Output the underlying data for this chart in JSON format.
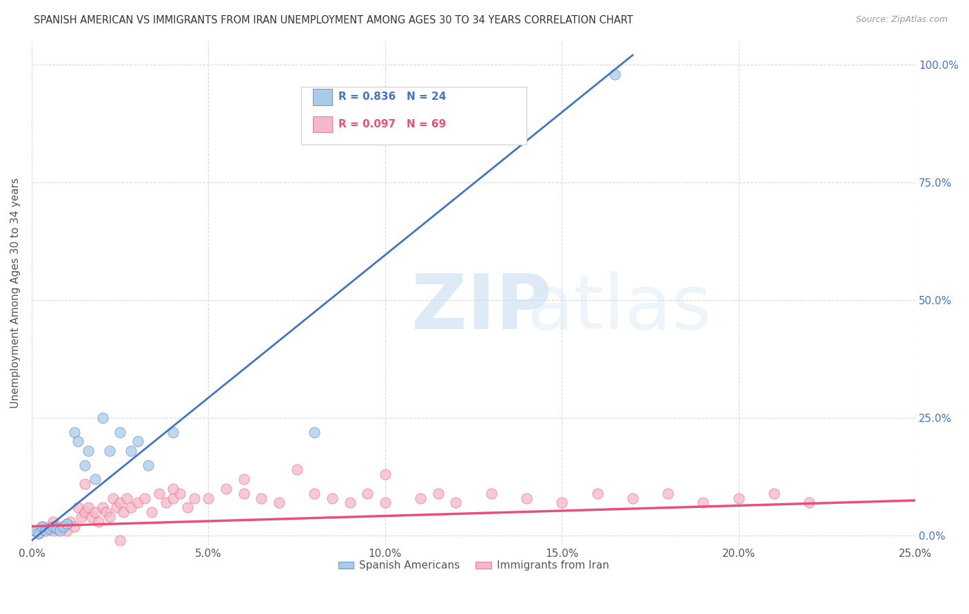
{
  "title": "SPANISH AMERICAN VS IMMIGRANTS FROM IRAN UNEMPLOYMENT AMONG AGES 30 TO 34 YEARS CORRELATION CHART",
  "source": "Source: ZipAtlas.com",
  "xlabel_ticks": [
    "0.0%",
    "5.0%",
    "10.0%",
    "15.0%",
    "20.0%",
    "25.0%"
  ],
  "ylabel_ticks_right": [
    "0.0%",
    "25.0%",
    "50.0%",
    "75.0%",
    "100.0%"
  ],
  "xlim": [
    0.0,
    0.25
  ],
  "ylim": [
    -0.02,
    1.05
  ],
  "blue_scatter_x": [
    0.001,
    0.002,
    0.003,
    0.004,
    0.005,
    0.006,
    0.007,
    0.008,
    0.009,
    0.01,
    0.012,
    0.013,
    0.015,
    0.016,
    0.018,
    0.02,
    0.022,
    0.025,
    0.028,
    0.03,
    0.033,
    0.04,
    0.08,
    0.165
  ],
  "blue_scatter_y": [
    0.01,
    0.005,
    0.02,
    0.01,
    0.015,
    0.02,
    0.015,
    0.01,
    0.02,
    0.025,
    0.22,
    0.2,
    0.15,
    0.18,
    0.12,
    0.25,
    0.18,
    0.22,
    0.18,
    0.2,
    0.15,
    0.22,
    0.22,
    0.98
  ],
  "pink_scatter_x": [
    0.001,
    0.002,
    0.003,
    0.003,
    0.004,
    0.005,
    0.006,
    0.006,
    0.007,
    0.008,
    0.009,
    0.01,
    0.01,
    0.011,
    0.012,
    0.013,
    0.014,
    0.015,
    0.016,
    0.017,
    0.018,
    0.019,
    0.02,
    0.021,
    0.022,
    0.023,
    0.024,
    0.025,
    0.026,
    0.027,
    0.028,
    0.03,
    0.032,
    0.034,
    0.036,
    0.038,
    0.04,
    0.042,
    0.044,
    0.046,
    0.05,
    0.055,
    0.06,
    0.065,
    0.07,
    0.08,
    0.085,
    0.09,
    0.095,
    0.1,
    0.11,
    0.115,
    0.12,
    0.13,
    0.14,
    0.15,
    0.16,
    0.17,
    0.18,
    0.19,
    0.2,
    0.21,
    0.22,
    0.1,
    0.06,
    0.075,
    0.04,
    0.025,
    0.015
  ],
  "pink_scatter_y": [
    0.01,
    0.005,
    0.02,
    0.01,
    0.015,
    0.02,
    0.01,
    0.03,
    0.02,
    0.015,
    0.02,
    0.025,
    0.01,
    0.03,
    0.02,
    0.06,
    0.04,
    0.05,
    0.06,
    0.04,
    0.05,
    0.03,
    0.06,
    0.05,
    0.04,
    0.08,
    0.06,
    0.07,
    0.05,
    0.08,
    0.06,
    0.07,
    0.08,
    0.05,
    0.09,
    0.07,
    0.08,
    0.09,
    0.06,
    0.08,
    0.08,
    0.1,
    0.09,
    0.08,
    0.07,
    0.09,
    0.08,
    0.07,
    0.09,
    0.07,
    0.08,
    0.09,
    0.07,
    0.09,
    0.08,
    0.07,
    0.09,
    0.08,
    0.09,
    0.07,
    0.08,
    0.09,
    0.07,
    0.13,
    0.12,
    0.14,
    0.1,
    -0.01,
    0.11
  ],
  "blue_color": "#a8cce8",
  "pink_color": "#f4b8c8",
  "blue_line_color": "#4472C4",
  "pink_line_color": "#e8507a",
  "R_blue": "0.836",
  "N_blue": "24",
  "R_pink": "0.097",
  "N_pink": "69",
  "legend_label_blue": "Spanish Americans",
  "legend_label_pink": "Immigrants from Iran",
  "ylabel": "Unemployment Among Ages 30 to 34 years",
  "watermark_zip": "ZIP",
  "watermark_atlas": "atlas",
  "background_color": "#ffffff",
  "grid_color": "#d8d8d8"
}
